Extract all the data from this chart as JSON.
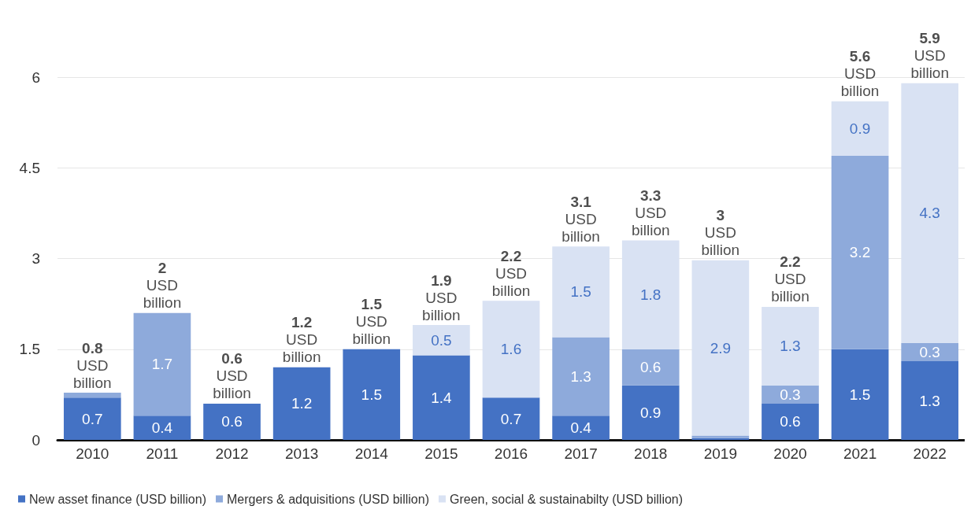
{
  "chart_data": {
    "type": "bar",
    "stacked": true,
    "categories": [
      "2010",
      "2011",
      "2012",
      "2013",
      "2014",
      "2015",
      "2016",
      "2017",
      "2018",
      "2019",
      "2020",
      "2021",
      "2022"
    ],
    "series": [
      {
        "name": "New asset finance (USD billion)",
        "color": "#4472c4",
        "values": [
          0.7,
          0.4,
          0.6,
          1.2,
          1.5,
          1.4,
          0.7,
          0.4,
          0.9,
          0.03,
          0.6,
          1.5,
          1.3
        ],
        "value_labels": [
          "0.7",
          "0.4",
          "0.6",
          "1.2",
          "1.5",
          "1.4",
          "0.7",
          "0.4",
          "0.9",
          null,
          "0.6",
          "1.5",
          "1.3"
        ]
      },
      {
        "name": "Mergers & adquisitions (USD billion)",
        "color": "#8eaadb",
        "values": [
          0.08,
          1.7,
          null,
          null,
          null,
          null,
          null,
          1.3,
          0.6,
          0.04,
          0.3,
          3.2,
          0.3
        ],
        "value_labels": [
          null,
          "1.7",
          null,
          null,
          null,
          null,
          null,
          "1.3",
          "0.6",
          null,
          "0.3",
          "3.2",
          "0.3"
        ]
      },
      {
        "name": "Green, social & sustainabilty (USD billion)",
        "color": "#d9e2f3",
        "values": [
          null,
          null,
          null,
          null,
          null,
          0.5,
          1.6,
          1.5,
          1.8,
          2.9,
          1.3,
          0.9,
          4.3
        ],
        "value_labels": [
          null,
          null,
          null,
          null,
          null,
          "0.5",
          "1.6",
          "1.5",
          "1.8",
          "2.9",
          "1.3",
          "0.9",
          "4.3"
        ]
      }
    ],
    "totals": [
      "0.8 USD billion",
      "2 USD billion",
      "0.6 USD billion",
      "1.2 USD billion",
      "1.5 USD billion",
      "1.9 USD billion",
      "2.2 USD billion",
      "3.1 USD billion",
      "3.3 USD billion",
      "3 USD billion",
      "2.2 USD billion",
      "5.6 USD billion",
      "5.9 USD billion"
    ],
    "ylim": [
      0,
      6
    ],
    "yticks": [
      0,
      1.5,
      3,
      4.5,
      6
    ],
    "grid": "y",
    "legend": "bottom left"
  }
}
